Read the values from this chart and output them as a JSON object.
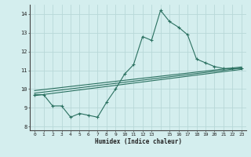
{
  "xlabel": "Humidex (Indice chaleur)",
  "background_color": "#d4eeee",
  "grid_color": "#b8d8d8",
  "line_color": "#2a7060",
  "xlim": [
    -0.5,
    23.5
  ],
  "ylim": [
    7.8,
    14.5
  ],
  "xticks": [
    0,
    1,
    2,
    3,
    4,
    5,
    6,
    7,
    8,
    9,
    10,
    11,
    12,
    13,
    15,
    16,
    17,
    18,
    19,
    20,
    21,
    22,
    23
  ],
  "yticks": [
    8,
    9,
    10,
    11,
    12,
    13,
    14
  ],
  "series": [
    [
      0,
      9.7
    ],
    [
      1,
      9.7
    ],
    [
      2,
      9.1
    ],
    [
      3,
      9.1
    ],
    [
      4,
      8.5
    ],
    [
      5,
      8.7
    ],
    [
      6,
      8.6
    ],
    [
      7,
      8.5
    ],
    [
      8,
      9.3
    ],
    [
      9,
      10.0
    ],
    [
      10,
      10.8
    ],
    [
      11,
      11.3
    ],
    [
      12,
      12.8
    ],
    [
      13,
      12.6
    ],
    [
      14,
      14.2
    ],
    [
      15,
      13.6
    ],
    [
      16,
      13.3
    ],
    [
      17,
      12.9
    ],
    [
      18,
      11.6
    ],
    [
      19,
      11.4
    ],
    [
      20,
      11.2
    ],
    [
      21,
      11.1
    ],
    [
      22,
      11.1
    ],
    [
      23,
      11.1
    ]
  ],
  "trend_lines": [
    {
      "x0": 0,
      "y0": 9.65,
      "x1": 23,
      "y1": 11.05
    },
    {
      "x0": 0,
      "y0": 9.78,
      "x1": 23,
      "y1": 11.12
    },
    {
      "x0": 0,
      "y0": 9.92,
      "x1": 23,
      "y1": 11.18
    }
  ]
}
